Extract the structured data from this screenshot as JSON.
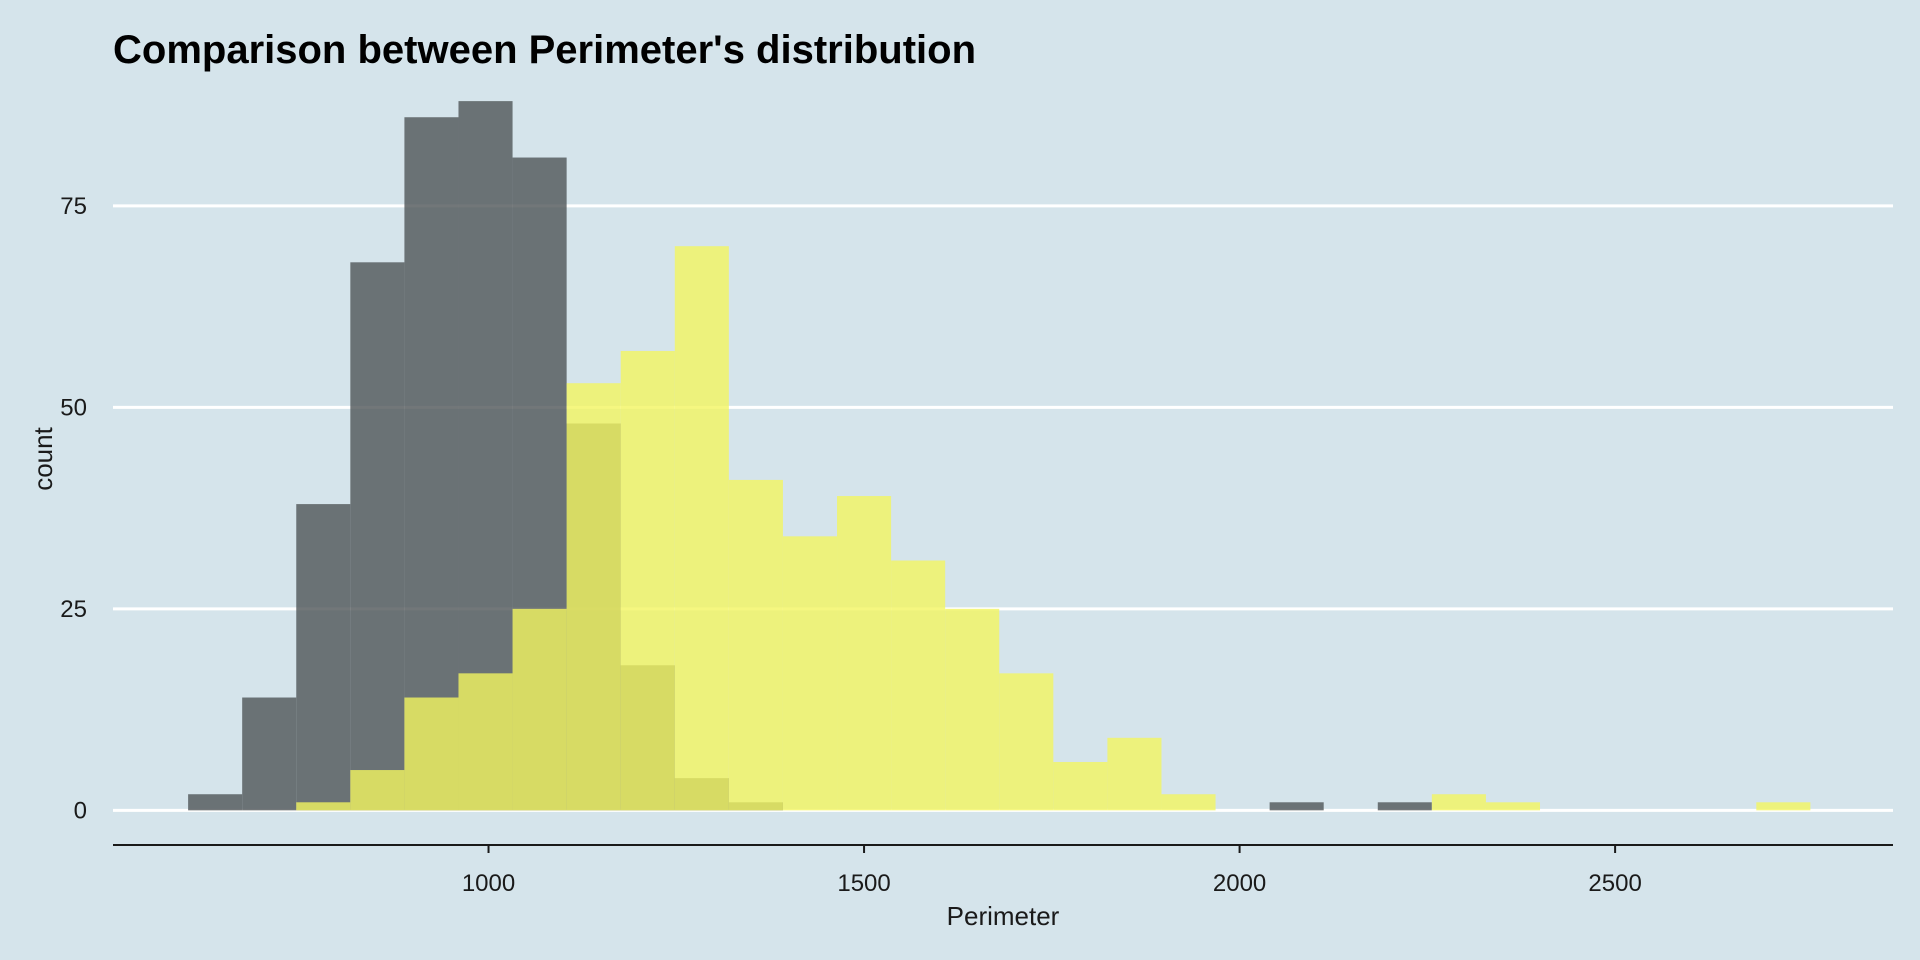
{
  "chart_data": {
    "type": "histogram",
    "title": "Comparison between Perimeter's distribution",
    "xlabel": "Perimeter",
    "ylabel": "count",
    "xlim": [
      500,
      2870
    ],
    "ylim": [
      -4.3,
      90
    ],
    "x_ticks": [
      1000,
      1500,
      2000,
      2500
    ],
    "y_ticks": [
      0,
      25,
      50,
      75
    ],
    "grid": "horizontal major only",
    "legend": "none",
    "bin_width": 72,
    "series": [
      {
        "color": "#4f5557",
        "opacity": 0.8,
        "bins": [
          {
            "x0": 600,
            "x1": 672,
            "count": 2
          },
          {
            "x0": 672,
            "x1": 744,
            "count": 14
          },
          {
            "x0": 744,
            "x1": 816,
            "count": 38
          },
          {
            "x0": 816,
            "x1": 888,
            "count": 68
          },
          {
            "x0": 888,
            "x1": 960,
            "count": 86
          },
          {
            "x0": 960,
            "x1": 1032,
            "count": 88
          },
          {
            "x0": 1032,
            "x1": 1104,
            "count": 81
          },
          {
            "x0": 1104,
            "x1": 1176,
            "count": 48
          },
          {
            "x0": 1176,
            "x1": 1248,
            "count": 18
          },
          {
            "x0": 1248,
            "x1": 1320,
            "count": 4
          },
          {
            "x0": 1320,
            "x1": 1392,
            "count": 1
          },
          {
            "x0": 2040,
            "x1": 2112,
            "count": 1
          },
          {
            "x0": 2184,
            "x1": 2256,
            "count": 1
          }
        ]
      },
      {
        "color": "#f3f560",
        "opacity": 0.8,
        "bins": [
          {
            "x0": 744,
            "x1": 816,
            "count": 1
          },
          {
            "x0": 816,
            "x1": 888,
            "count": 5
          },
          {
            "x0": 888,
            "x1": 960,
            "count": 14
          },
          {
            "x0": 960,
            "x1": 1032,
            "count": 17
          },
          {
            "x0": 1032,
            "x1": 1104,
            "count": 25
          },
          {
            "x0": 1104,
            "x1": 1176,
            "count": 53
          },
          {
            "x0": 1176,
            "x1": 1248,
            "count": 57
          },
          {
            "x0": 1248,
            "x1": 1320,
            "count": 70
          },
          {
            "x0": 1320,
            "x1": 1392,
            "count": 41
          },
          {
            "x0": 1392,
            "x1": 1464,
            "count": 34
          },
          {
            "x0": 1464,
            "x1": 1536,
            "count": 39
          },
          {
            "x0": 1536,
            "x1": 1608,
            "count": 31
          },
          {
            "x0": 1608,
            "x1": 1680,
            "count": 25
          },
          {
            "x0": 1680,
            "x1": 1752,
            "count": 17
          },
          {
            "x0": 1752,
            "x1": 1824,
            "count": 6
          },
          {
            "x0": 1824,
            "x1": 1896,
            "count": 9
          },
          {
            "x0": 1896,
            "x1": 1968,
            "count": 2
          },
          {
            "x0": 2256,
            "x1": 2328,
            "count": 2
          },
          {
            "x0": 2328,
            "x1": 2400,
            "count": 1
          },
          {
            "x0": 2688,
            "x1": 2760,
            "count": 1
          }
        ]
      }
    ]
  }
}
